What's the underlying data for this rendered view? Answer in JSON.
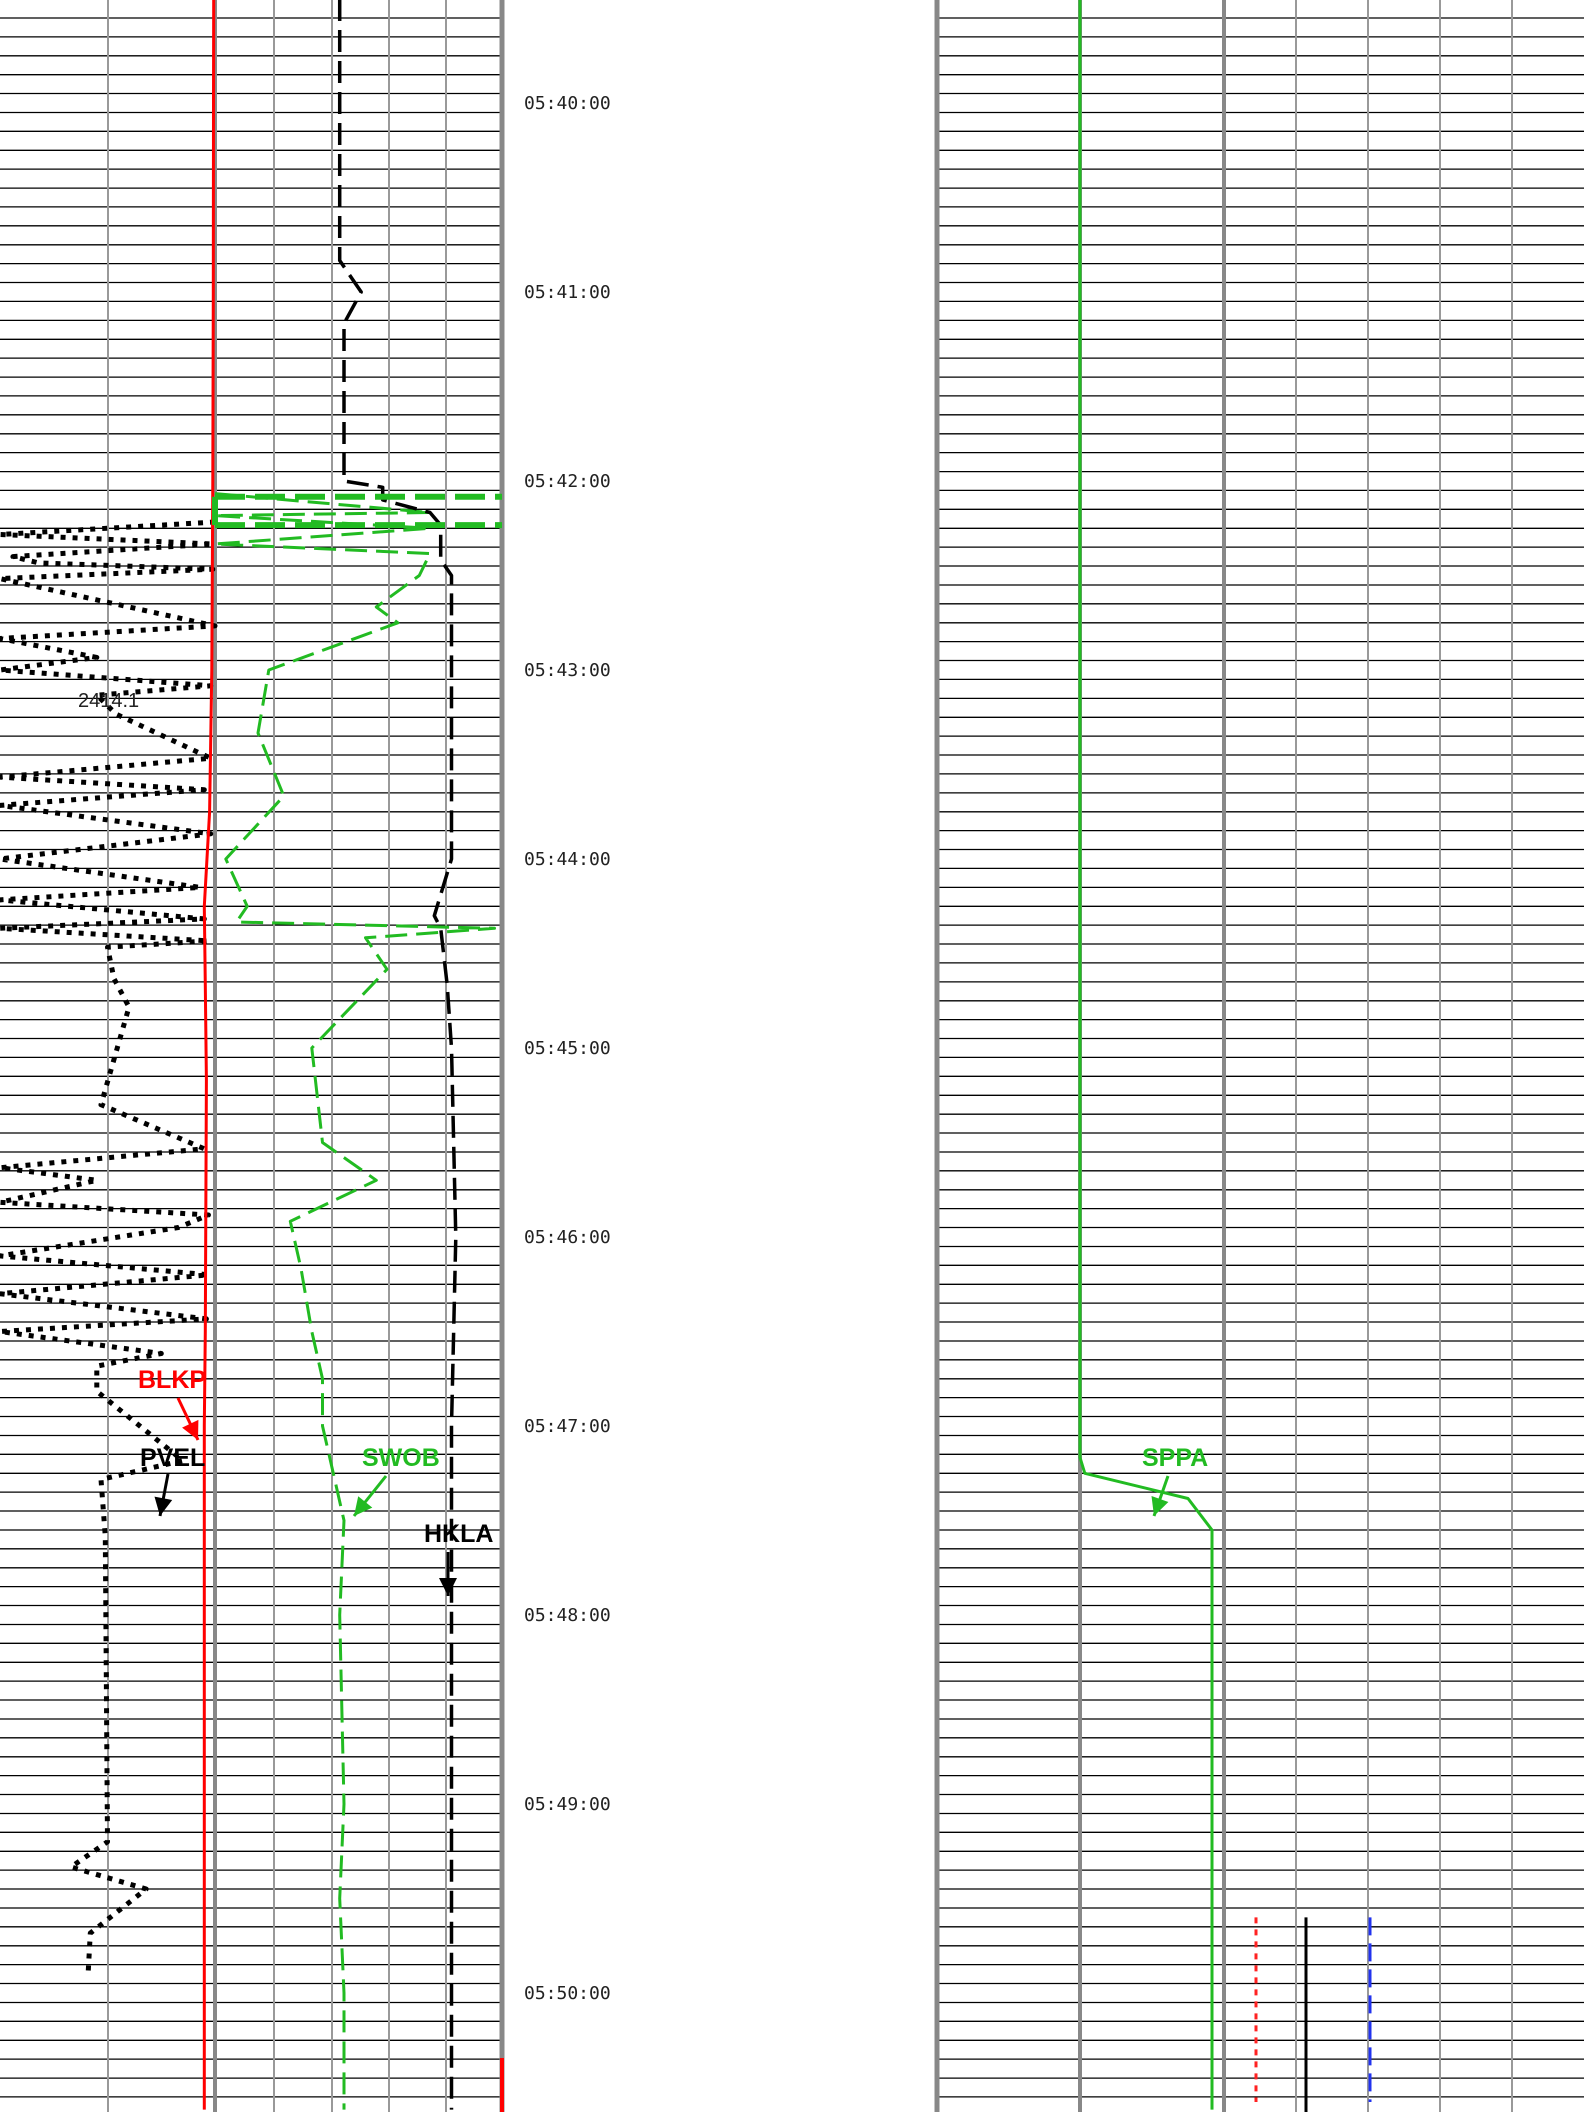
{
  "chart_data": {
    "type": "line",
    "orientation": "vertical time log",
    "time_axis": {
      "ticks": [
        "05:40:00",
        "05:41:00",
        "05:42:00",
        "05:43:00",
        "05:44:00",
        "05:45:00",
        "05:46:00",
        "05:47:00",
        "05:48:00",
        "05:49:00",
        "05:50:00"
      ],
      "range": [
        "05:39:27",
        "05:50:37"
      ],
      "direction": "down",
      "grid": true
    },
    "annotations": [
      "2414.1"
    ],
    "series": [
      {
        "name": "PVEL",
        "track": "left",
        "color": "#000000",
        "style": "dotted",
        "points": [
          [
            "05:42:13",
            1.0
          ],
          [
            "05:42:17",
            0.0
          ],
          [
            "05:42:20",
            0.99
          ],
          [
            "05:42:24",
            0.06
          ],
          [
            "05:42:26",
            0.18
          ],
          [
            "05:42:28",
            0.99
          ],
          [
            "05:42:31",
            0.0
          ],
          [
            "05:42:46",
            1.0
          ],
          [
            "05:42:50",
            0.0
          ],
          [
            "05:42:56",
            0.45
          ],
          [
            "05:43:00",
            0.0
          ],
          [
            "05:43:05",
            0.98
          ],
          [
            "05:43:08",
            0.45
          ],
          [
            "05:43:14",
            0.54
          ],
          [
            "05:43:28",
            0.98
          ],
          [
            "05:43:34",
            0.0
          ],
          [
            "05:43:38",
            0.95
          ],
          [
            "05:43:43",
            0.0
          ],
          [
            "05:43:52",
            0.98
          ],
          [
            "05:44:00",
            0.0
          ],
          [
            "05:44:09",
            0.93
          ],
          [
            "05:44:13",
            0.0
          ],
          [
            "05:44:19",
            0.95
          ],
          [
            "05:44:22",
            0.0
          ],
          [
            "05:44:26",
            0.97
          ],
          [
            "05:44:28",
            0.5
          ],
          [
            "05:44:38",
            0.53
          ],
          [
            "05:44:47",
            0.6
          ],
          [
            "05:45:18",
            0.47
          ],
          [
            "05:45:32",
            0.95
          ],
          [
            "05:45:38",
            0.0
          ],
          [
            "05:45:42",
            0.45
          ],
          [
            "05:45:49",
            0.0
          ],
          [
            "05:45:53",
            0.97
          ],
          [
            "05:45:57",
            0.83
          ],
          [
            "05:46:06",
            0.0
          ],
          [
            "05:46:12",
            0.97
          ],
          [
            "05:46:18",
            0.0
          ],
          [
            "05:46:26",
            0.96
          ],
          [
            "05:46:30",
            0.0
          ],
          [
            "05:46:37",
            0.75
          ],
          [
            "05:46:41",
            0.45
          ],
          [
            "05:46:49",
            0.45
          ],
          [
            "05:47:11",
            0.85
          ],
          [
            "05:47:17",
            0.47
          ],
          [
            "05:47:35",
            0.49
          ],
          [
            "05:49:12",
            0.5
          ],
          [
            "05:49:20",
            0.33
          ],
          [
            "05:49:27",
            0.68
          ],
          [
            "05:49:41",
            0.42
          ],
          [
            "05:49:54",
            0.41
          ]
        ]
      },
      {
        "name": "BLKP",
        "track": "left",
        "color": "#ff0000",
        "style": "solid",
        "points": [
          [
            "05:39:27",
            0.994
          ],
          [
            "05:40:00",
            0.993
          ],
          [
            "05:41:00",
            0.992
          ],
          [
            "05:42:00",
            0.99
          ],
          [
            "05:43:00",
            0.985
          ],
          [
            "05:43:45",
            0.975
          ],
          [
            "05:44:15",
            0.95
          ],
          [
            "05:44:40",
            0.955
          ],
          [
            "05:45:10",
            0.96
          ],
          [
            "05:46:30",
            0.955
          ],
          [
            "05:47:00",
            0.95
          ],
          [
            "05:48:00",
            0.95
          ],
          [
            "05:49:00",
            0.95
          ],
          [
            "05:50:37",
            0.95
          ]
        ]
      },
      {
        "name": "SWOB",
        "track": "left",
        "color": "#22bb22",
        "style": "dashed",
        "points": [
          [
            "05:42:04",
            1.0
          ],
          [
            "05:42:10",
            2.0
          ],
          [
            "05:42:11",
            1.0
          ],
          [
            "05:42:15",
            2.0
          ],
          [
            "05:42:20",
            1.0
          ],
          [
            "05:42:23",
            2.0
          ],
          [
            "05:42:30",
            1.95
          ],
          [
            "05:42:40",
            1.75
          ],
          [
            "05:42:45",
            1.85
          ],
          [
            "05:43:00",
            1.25
          ],
          [
            "05:43:20",
            1.2
          ],
          [
            "05:43:40",
            1.32
          ],
          [
            "05:44:00",
            1.05
          ],
          [
            "05:44:15",
            1.15
          ],
          [
            "05:44:20",
            1.1
          ],
          [
            "05:44:22",
            2.3
          ],
          [
            "05:44:25",
            1.7
          ],
          [
            "05:44:35",
            1.8
          ],
          [
            "05:45:00",
            1.45
          ],
          [
            "05:45:30",
            1.5
          ],
          [
            "05:45:42",
            1.75
          ],
          [
            "05:45:55",
            1.35
          ],
          [
            "05:46:10",
            1.4
          ],
          [
            "05:46:30",
            1.45
          ],
          [
            "05:46:45",
            1.5
          ],
          [
            "05:47:00",
            1.5
          ],
          [
            "05:47:15",
            1.55
          ],
          [
            "05:47:30",
            1.6
          ],
          [
            "05:48:00",
            1.58
          ],
          [
            "05:49:00",
            1.6
          ],
          [
            "05:49:30",
            1.58
          ],
          [
            "05:50:00",
            1.6
          ],
          [
            "05:50:37",
            1.6
          ]
        ]
      },
      {
        "name": "HKLA",
        "track": "left",
        "color": "#000000",
        "style": "dashed",
        "points": [
          [
            "05:39:27",
            1.58
          ],
          [
            "05:40:00",
            1.58
          ],
          [
            "05:40:50",
            1.58
          ],
          [
            "05:41:00",
            1.68
          ],
          [
            "05:41:10",
            1.6
          ],
          [
            "05:42:00",
            1.6
          ],
          [
            "05:42:02",
            1.78
          ],
          [
            "05:42:06",
            1.78
          ],
          [
            "05:42:10",
            2.0
          ],
          [
            "05:42:14",
            2.05
          ],
          [
            "05:42:25",
            2.05
          ],
          [
            "05:42:30",
            2.1
          ],
          [
            "05:43:00",
            2.1
          ],
          [
            "05:44:00",
            2.1
          ],
          [
            "05:44:18",
            2.02
          ],
          [
            "05:44:22",
            2.05
          ],
          [
            "05:44:40",
            2.08
          ],
          [
            "05:45:00",
            2.1
          ],
          [
            "05:46:00",
            2.12
          ],
          [
            "05:47:00",
            2.1
          ],
          [
            "05:48:00",
            2.1
          ],
          [
            "05:49:00",
            2.1
          ],
          [
            "05:50:37",
            2.1
          ]
        ]
      },
      {
        "name": "SPPA",
        "track": "right",
        "color": "#22bb22",
        "style": "solid",
        "points": [
          [
            "05:39:27",
            1.0
          ],
          [
            "05:47:10",
            1.0
          ],
          [
            "05:47:15",
            1.02
          ],
          [
            "05:47:23",
            1.45
          ],
          [
            "05:47:33",
            1.55
          ],
          [
            "05:48:00",
            1.55
          ],
          [
            "05:49:00",
            1.55
          ],
          [
            "05:50:00",
            1.55
          ],
          [
            "05:50:37",
            1.55
          ]
        ]
      }
    ]
  }
}
